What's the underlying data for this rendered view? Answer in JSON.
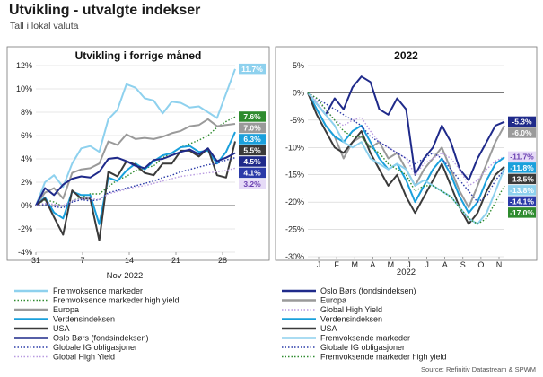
{
  "page": {
    "title": "Utvikling - utvalgte indekser",
    "subtitle": "Tall i lokal valuta",
    "source": "Source: Refinitiv Datastream & SPWM"
  },
  "chart_data": [
    {
      "type": "line",
      "title": "Utvikling i forrige måned",
      "xlabel": "Nov 2022",
      "x_ticks": [
        "31",
        "7",
        "14",
        "21",
        "28"
      ],
      "y_ticks": [
        "12%",
        "10%",
        "8%",
        "6%",
        "4%",
        "2%",
        "0%",
        "-2%",
        "-4%"
      ],
      "ylim": [
        -4,
        12
      ],
      "ylim_unit": "%",
      "grid": "horizontal",
      "legend_position": "bottom",
      "x": [
        0,
        1,
        2,
        3,
        4,
        5,
        6,
        7,
        8,
        9,
        10,
        11,
        12,
        13,
        14,
        15,
        16,
        17,
        18,
        19,
        20,
        21,
        22
      ],
      "series": [
        {
          "name": "Fremvoksende markeder",
          "color": "#8ed1ee",
          "style": "solid",
          "end_label": "11.7%",
          "values": [
            0,
            2.0,
            2.6,
            1.6,
            3.6,
            4.9,
            5.1,
            4.6,
            7.4,
            8.2,
            10.4,
            10.1,
            9.2,
            9.0,
            7.9,
            8.9,
            8.8,
            8.4,
            8.5,
            8.0,
            7.5,
            9.6,
            11.7
          ]
        },
        {
          "name": "Fremvoksende markeder high yield",
          "color": "#2e8b2e",
          "style": "dotted",
          "end_label": "7.6%",
          "values": [
            0,
            0.5,
            0.3,
            -0.1,
            0.4,
            0.7,
            1.0,
            1.0,
            1.6,
            2.2,
            2.5,
            3.0,
            3.2,
            3.4,
            4.1,
            4.5,
            5.0,
            5.3,
            5.6,
            6.0,
            6.7,
            7.2,
            7.6
          ]
        },
        {
          "name": "Europa",
          "color": "#9a9a9a",
          "style": "solid",
          "end_label": "7.0%",
          "values": [
            0,
            1.1,
            1.5,
            0.6,
            2.8,
            3.1,
            3.2,
            3.6,
            5.5,
            5.2,
            6.1,
            5.7,
            5.8,
            5.7,
            5.9,
            6.2,
            6.4,
            6.8,
            6.9,
            7.4,
            6.8,
            6.9,
            7.0
          ]
        },
        {
          "name": "Verdensindeksen",
          "color": "#1aa0dc",
          "style": "solid",
          "end_label": "6.3%",
          "values": [
            0,
            0.7,
            -0.6,
            -1.1,
            1.2,
            0.9,
            0.9,
            -1.6,
            2.4,
            2.1,
            3.0,
            3.6,
            3.1,
            3.8,
            4.3,
            4.5,
            5.0,
            5.1,
            4.6,
            4.7,
            3.6,
            4.6,
            6.3
          ]
        },
        {
          "name": "USA",
          "color": "#3a3a3a",
          "style": "solid",
          "end_label": "5.5%",
          "values": [
            0,
            0.6,
            -1.0,
            -2.5,
            1.3,
            0.6,
            0.6,
            -3.0,
            2.9,
            2.5,
            3.8,
            3.5,
            2.8,
            2.6,
            3.6,
            3.6,
            4.7,
            4.7,
            4.2,
            4.9,
            2.6,
            2.4,
            5.5
          ]
        },
        {
          "name": "Oslo Børs (fondsindeksen)",
          "color": "#1f2a8a",
          "style": "solid",
          "end_label": "4.5%",
          "values": [
            0,
            1.5,
            0.9,
            1.8,
            2.3,
            2.5,
            2.4,
            2.9,
            4.0,
            4.1,
            3.8,
            3.4,
            3.2,
            3.9,
            4.0,
            4.3,
            4.6,
            4.8,
            4.4,
            4.9,
            3.8,
            4.1,
            4.5
          ]
        },
        {
          "name": "Globale IG obligasjoner",
          "color": "#2a3aa8",
          "style": "dotted",
          "end_label": "4.1%",
          "values": [
            0,
            0.1,
            -0.1,
            -0.2,
            0.3,
            0.5,
            0.4,
            0.5,
            1.1,
            1.3,
            1.5,
            1.7,
            1.9,
            2.1,
            2.4,
            2.6,
            2.9,
            3.1,
            3.3,
            3.5,
            3.6,
            3.9,
            4.1
          ]
        },
        {
          "name": "Global High Yield",
          "color": "#b89ae0",
          "style": "dotted",
          "end_label": "3.2%",
          "values": [
            0,
            0.2,
            0.1,
            0.0,
            0.4,
            0.6,
            0.6,
            0.5,
            1.0,
            1.2,
            1.4,
            1.6,
            1.7,
            1.9,
            2.1,
            2.3,
            2.5,
            2.6,
            2.7,
            2.8,
            2.9,
            3.0,
            3.2
          ]
        }
      ]
    },
    {
      "type": "line",
      "title": "2022",
      "xlabel": "2022",
      "x_ticks": [
        "J",
        "F",
        "M",
        "A",
        "M",
        "J",
        "J",
        "A",
        "S",
        "O",
        "N"
      ],
      "y_ticks": [
        "5%",
        "0%",
        "-5%",
        "-10%",
        "-15%",
        "-20%",
        "-25%",
        "-30%"
      ],
      "ylim": [
        -30,
        5
      ],
      "ylim_unit": "%",
      "grid": "horizontal",
      "legend_position": "bottom",
      "x": [
        0,
        0.5,
        1,
        1.5,
        2,
        2.5,
        3,
        3.5,
        4,
        4.5,
        5,
        5.5,
        6,
        6.5,
        7,
        7.5,
        8,
        8.5,
        9,
        9.5,
        10,
        10.5,
        11
      ],
      "series": [
        {
          "name": "Oslo Børs (fondsindeksen)",
          "color": "#1f2a8a",
          "style": "solid",
          "end_label": "-5.3%",
          "values": [
            0,
            -2,
            -4,
            -1,
            -3,
            1,
            3,
            2,
            -3,
            -4,
            -1,
            -3,
            -15,
            -12,
            -10,
            -6,
            -9,
            -14,
            -16,
            -12,
            -9,
            -6,
            -5.3
          ]
        },
        {
          "name": "Europa",
          "color": "#9a9a9a",
          "style": "solid",
          "end_label": "-6.0%",
          "values": [
            0,
            -3,
            -6,
            -8,
            -12,
            -9,
            -8,
            -10,
            -9,
            -12,
            -11,
            -14,
            -17,
            -14,
            -12,
            -10,
            -14,
            -18,
            -21,
            -17,
            -13,
            -9,
            -6.0
          ]
        },
        {
          "name": "Global High Yield",
          "color": "#b89ae0",
          "style": "dotted",
          "end_label": "-11.7%",
          "values": [
            0,
            -1.5,
            -3,
            -5,
            -6,
            -5,
            -4.5,
            -7,
            -9,
            -10,
            -11,
            -12,
            -15,
            -13,
            -12,
            -11,
            -12,
            -14,
            -17,
            -16,
            -14,
            -12.5,
            -11.7
          ]
        },
        {
          "name": "Verdensindeksen",
          "color": "#1aa0dc",
          "style": "solid",
          "end_label": "-11.8%",
          "values": [
            0,
            -3,
            -6,
            -8,
            -9,
            -7,
            -6,
            -9,
            -12,
            -14,
            -13,
            -16,
            -20,
            -17,
            -14,
            -12,
            -15,
            -19,
            -22,
            -20,
            -16,
            -13,
            -11.8
          ]
        },
        {
          "name": "USA",
          "color": "#3a3a3a",
          "style": "solid",
          "end_label": "-13.5%",
          "values": [
            0,
            -4,
            -7,
            -10,
            -11,
            -9,
            -7,
            -11,
            -14,
            -17,
            -15,
            -19,
            -22,
            -19,
            -16,
            -13,
            -17,
            -21,
            -24,
            -22,
            -18,
            -15,
            -13.5
          ]
        },
        {
          "name": "Fremvoksende markeder",
          "color": "#8ed1ee",
          "style": "solid",
          "end_label": "-13.8%",
          "values": [
            0,
            -2,
            -4,
            -6,
            -9,
            -10,
            -9,
            -12,
            -13,
            -14,
            -13,
            -14,
            -17,
            -16,
            -17,
            -18,
            -19,
            -21,
            -23,
            -24,
            -22,
            -18,
            -13.8
          ]
        },
        {
          "name": "Globale IG obligasjoner",
          "color": "#2a3aa8",
          "style": "dotted",
          "end_label": "-14.1%",
          "values": [
            0,
            -1,
            -2,
            -3,
            -4,
            -5,
            -6,
            -8,
            -9,
            -10,
            -11,
            -12,
            -13,
            -12,
            -11,
            -12,
            -14,
            -16,
            -18,
            -20,
            -19,
            -16,
            -14.1
          ]
        },
        {
          "name": "Fremvoksende markeder high yield",
          "color": "#2e8b2e",
          "style": "dotted",
          "end_label": "-17.0%",
          "values": [
            0,
            -1,
            -3,
            -5,
            -7,
            -8,
            -8,
            -10,
            -11,
            -13,
            -14,
            -15,
            -18,
            -17,
            -17,
            -18,
            -19,
            -21,
            -23,
            -24,
            -23,
            -20,
            -17.0
          ]
        }
      ]
    }
  ]
}
